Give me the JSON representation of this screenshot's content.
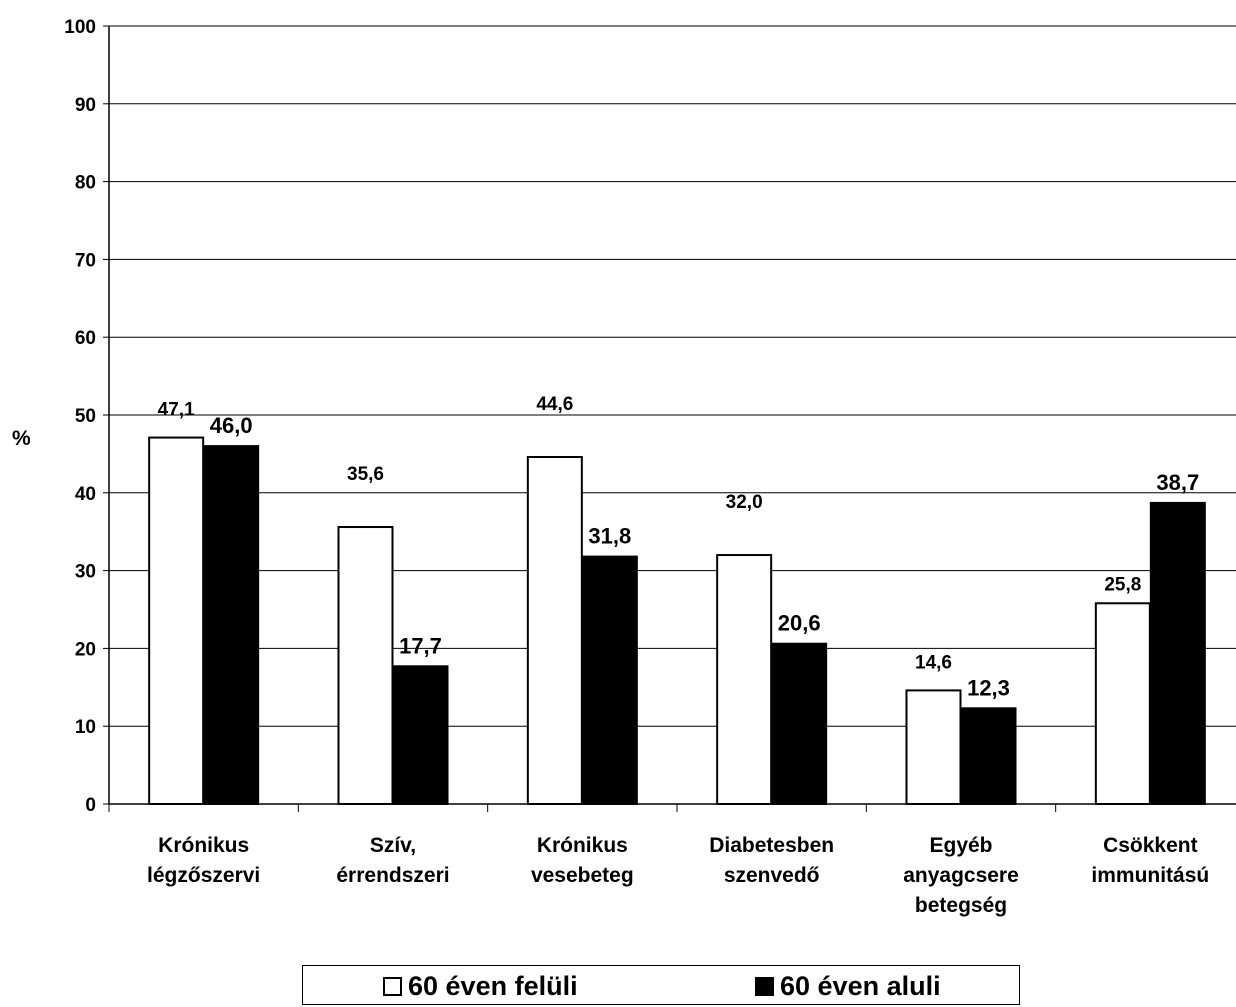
{
  "chart_data": {
    "type": "bar",
    "ylabel": "%",
    "xlabel": "",
    "ylim": [
      0,
      100
    ],
    "yticks": [
      "0",
      "10",
      "20",
      "30",
      "40",
      "50",
      "60",
      "70",
      "80",
      "90",
      "100"
    ],
    "categories": [
      [
        "Krónikus",
        "légzőszervi"
      ],
      [
        "Szív,",
        "érrendszeri"
      ],
      [
        "Krónikus",
        "vesebeteg"
      ],
      [
        "Diabetesben",
        "szenvedő"
      ],
      [
        "Egyéb",
        "anyagcsere",
        "betegség"
      ],
      [
        "Csökkent",
        "immunitású"
      ]
    ],
    "series": [
      {
        "name": "60 éven felüli",
        "color": "#ffffff",
        "values": [
          47.1,
          35.6,
          44.6,
          32.0,
          14.6,
          25.8
        ],
        "labels": [
          "47,1",
          "35,6",
          "44,6",
          "32,0",
          "14,6",
          "25,8"
        ]
      },
      {
        "name": "60 éven aluli",
        "color": "#000000",
        "values": [
          46.0,
          17.7,
          31.8,
          20.6,
          12.3,
          38.7
        ],
        "labels": [
          "46,0",
          "17,7",
          "31,8",
          "20,6",
          "12,3",
          "38,7"
        ]
      }
    ],
    "grid": true,
    "legend_position": "bottom"
  }
}
